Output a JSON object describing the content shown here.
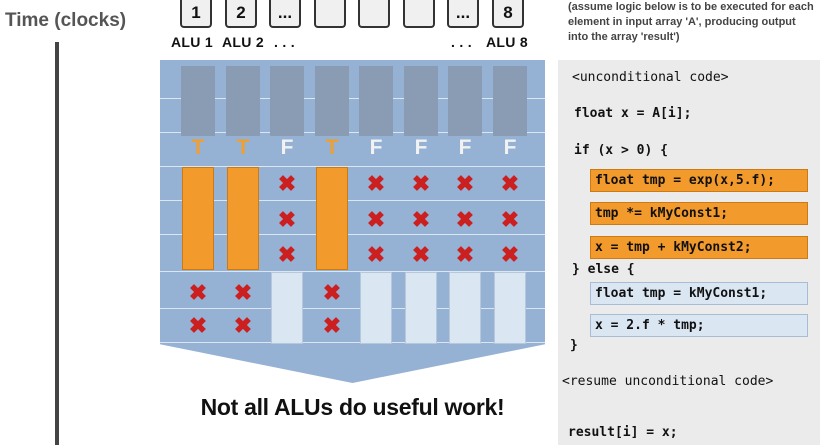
{
  "axis_label": "Time (clocks)",
  "alu_boxes": [
    "1",
    "2",
    "...",
    "",
    "",
    "",
    "...",
    "8"
  ],
  "alu_labels": {
    "alu1": "ALU 1",
    "alu2": "ALU 2",
    "dots_left": ". . .",
    "dots_right": ". . .",
    "alu8": "ALU 8"
  },
  "note": "(assume logic below is to be executed for each element in input array 'A', producing output into the array 'result')",
  "lanes": [
    "T",
    "T",
    "F",
    "T",
    "F",
    "F",
    "F",
    "F"
  ],
  "caption": "Not all ALUs do useful work!",
  "code": {
    "unconditional": "<unconditional code>",
    "line_decl": "float x = A[i];",
    "line_if": "if (x > 0) {",
    "true_branch": [
      "float tmp = exp(x,5.f);",
      "tmp *= kMyConst1;",
      "x = tmp + kMyConst2;"
    ],
    "line_else": "} else {",
    "false_branch": [
      "float tmp = kMyConst1;",
      "x = 2.f * tmp;"
    ],
    "line_close": "}",
    "resume": "<resume unconditional code>",
    "line_result": "result[i] = x;"
  },
  "colors": {
    "true_branch": "#f39a2c",
    "false_branch": "#dbe6f3",
    "idle_mark": "#cc1f1f",
    "panel": "#95b1d3"
  }
}
